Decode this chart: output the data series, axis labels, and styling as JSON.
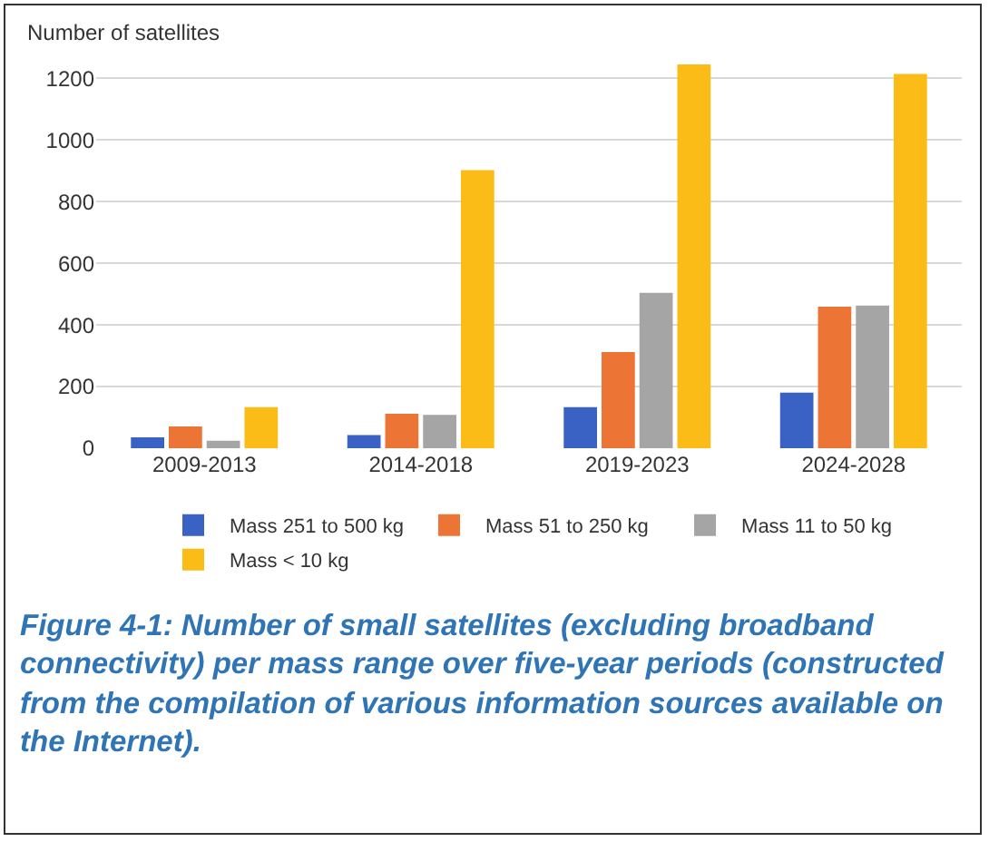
{
  "chart_data": {
    "type": "bar",
    "ylabel": "Number of satellites",
    "categories": [
      "2009-2013",
      "2014-2018",
      "2019-2023",
      "2024-2028"
    ],
    "series": [
      {
        "name": "Mass 251 to 500 kg",
        "color": "#3a62c4",
        "values": [
          35,
          43,
          133,
          180
        ]
      },
      {
        "name": "Mass 51 to 250 kg",
        "color": "#ec7434",
        "values": [
          71,
          112,
          312,
          459
        ]
      },
      {
        "name": "Mass 11 to 50 kg",
        "color": "#a5a5a5",
        "values": [
          24,
          108,
          504,
          463
        ]
      },
      {
        "name": "Mass < 10 kg",
        "color": "#fbbc17",
        "values": [
          133,
          902,
          1245,
          1214
        ]
      }
    ],
    "ylim": [
      0,
      1260
    ],
    "yticks": [
      0,
      200,
      400,
      600,
      800,
      1000,
      1200
    ],
    "grid": "y",
    "legend": "bottom",
    "annotations": [
      "Figure 4-1: Number of small satellites (excluding broadband connectivity) per mass range over five-year periods (constructed from the compilation of various information sources available on the Internet)."
    ]
  }
}
